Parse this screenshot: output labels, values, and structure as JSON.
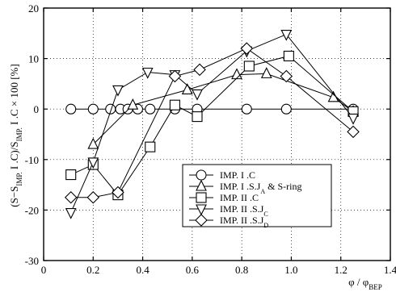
{
  "chart_data": {
    "type": "line",
    "title": "",
    "xlabel": "φ / φ_BEP",
    "ylabel": "(S−S_IMP. I .C)/S_IMP. I .C × 100 [%]",
    "xlim": [
      0,
      1.4
    ],
    "ylim": [
      -30,
      20
    ],
    "xticks": [
      0,
      0.2,
      0.4,
      0.6,
      0.8,
      1.0,
      1.2,
      1.4
    ],
    "xtick_labels": [
      "0",
      "0.2",
      "0.4",
      "0.6",
      "0.8",
      "1.0",
      "1.2",
      "1.4"
    ],
    "yticks": [
      -30,
      -20,
      -10,
      0,
      10,
      20
    ],
    "ytick_labels": [
      "-30",
      "-20",
      "-10",
      "0",
      "10",
      "20"
    ],
    "grid": true,
    "grid_style": "dotted",
    "legend_position": "lower-right",
    "series": [
      {
        "name": "IMP. I .C",
        "marker": "circle",
        "x": [
          0.11,
          0.2,
          0.27,
          0.31,
          0.34,
          0.38,
          0.43,
          0.53,
          0.62,
          0.82,
          0.98,
          1.25
        ],
        "y": [
          0,
          0,
          0,
          0,
          0,
          0,
          0,
          0,
          0,
          0,
          0,
          0
        ]
      },
      {
        "name": "IMP. I .S.J_A & S-ring",
        "marker": "triangle-up",
        "x": [
          0.2,
          0.36,
          0.58,
          0.78,
          0.9,
          1.17,
          1.25
        ],
        "y": [
          -7,
          0.8,
          3.8,
          6.8,
          7,
          2.3,
          -0.5
        ]
      },
      {
        "name": "IMP. II .C",
        "marker": "square",
        "x": [
          0.11,
          0.2,
          0.3,
          0.43,
          0.53,
          0.62,
          0.83,
          0.99,
          1.25
        ],
        "y": [
          -13,
          -11,
          -17,
          -7.5,
          0.8,
          -1.5,
          8.5,
          10.5,
          -0.5
        ]
      },
      {
        "name": "IMP. II .S.J_C",
        "marker": "triangle-down",
        "x": [
          0.11,
          0.2,
          0.3,
          0.42,
          0.53,
          0.62,
          0.82,
          0.98,
          1.25
        ],
        "y": [
          -20.5,
          -10.5,
          3.8,
          7.3,
          6.8,
          3,
          11.5,
          14.8,
          -1.8
        ]
      },
      {
        "name": "IMP. II .S.J_D",
        "marker": "diamond",
        "x": [
          0.11,
          0.2,
          0.3,
          0.53,
          0.63,
          0.82,
          0.98,
          1.25
        ],
        "y": [
          -17.5,
          -17.5,
          -16.5,
          6.5,
          7.8,
          12,
          6.5,
          -4.5
        ]
      }
    ]
  }
}
